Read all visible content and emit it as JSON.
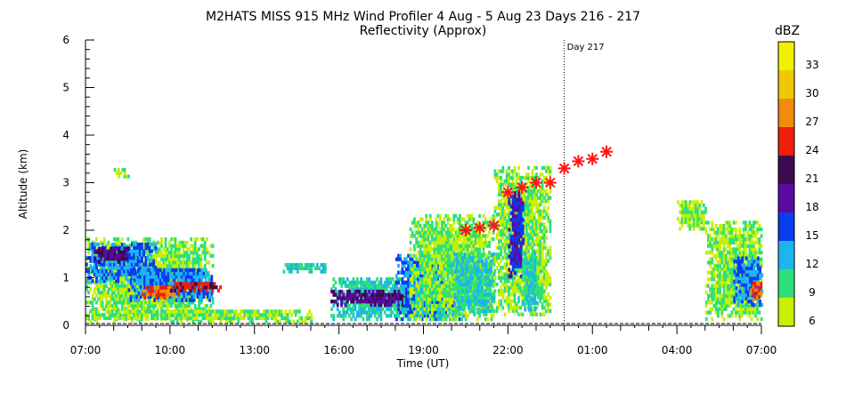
{
  "chart_data": {
    "type": "heatmap",
    "title": "M2HATS MISS 915 MHz Wind Profiler    4 Aug -  5 Aug 23 Days 216 - 217",
    "subtitle": "Reflectivity (Approx)",
    "xlabel": "Time (UT)",
    "ylabel": "Altitude (km)",
    "x_tick_labels": [
      "07:00",
      "10:00",
      "13:00",
      "16:00",
      "19:00",
      "22:00",
      "01:00",
      "04:00",
      "07:00"
    ],
    "x_range_hours": [
      7,
      31
    ],
    "ylim": [
      0,
      6
    ],
    "y_tick_labels": [
      "0",
      "1",
      "2",
      "3",
      "4",
      "5",
      "6"
    ],
    "day_marker": {
      "label": "Day 217",
      "x_hours": 24
    },
    "colorbar": {
      "unit": "dBZ",
      "tick_labels": [
        "6",
        "9",
        "12",
        "15",
        "18",
        "21",
        "24",
        "27",
        "30",
        "33"
      ],
      "levels": [
        6,
        9,
        12,
        15,
        18,
        21,
        24,
        27,
        30,
        33
      ],
      "colors": [
        "#c8f000",
        "#2ee07a",
        "#1eb4f0",
        "#0a3cf0",
        "#5a0aa0",
        "#3c0a50",
        "#f01e0a",
        "#f08c0a",
        "#f0c800",
        "#f0f000"
      ]
    },
    "markers": {
      "symbol": "asterisk",
      "color": "#ff1414",
      "points": [
        {
          "x": 20.5,
          "y": 2.0
        },
        {
          "x": 21.0,
          "y": 2.05
        },
        {
          "x": 21.5,
          "y": 2.1
        },
        {
          "x": 22.0,
          "y": 2.8
        },
        {
          "x": 22.5,
          "y": 2.9
        },
        {
          "x": 23.0,
          "y": 3.0
        },
        {
          "x": 23.5,
          "y": 3.0
        },
        {
          "x": 24.0,
          "y": 3.3
        },
        {
          "x": 24.5,
          "y": 3.45
        },
        {
          "x": 25.0,
          "y": 3.5
        },
        {
          "x": 25.5,
          "y": 3.65
        }
      ]
    },
    "echo_regions": [
      {
        "t0": 7.0,
        "t1": 11.5,
        "z0": 0.1,
        "z1": 1.8,
        "level": 9
      },
      {
        "t0": 7.0,
        "t1": 9.5,
        "z0": 0.9,
        "z1": 1.7,
        "level": 15
      },
      {
        "t0": 7.3,
        "t1": 8.5,
        "z0": 1.3,
        "z1": 1.6,
        "level": 21
      },
      {
        "t0": 8.5,
        "t1": 11.5,
        "z0": 0.5,
        "z1": 1.2,
        "level": 15
      },
      {
        "t0": 9.0,
        "t1": 10.3,
        "z0": 0.55,
        "z1": 0.8,
        "level": 27
      },
      {
        "t0": 10.0,
        "t1": 11.8,
        "z0": 0.7,
        "z1": 0.9,
        "level": 24
      },
      {
        "t0": 7.0,
        "t1": 15.0,
        "z0": 0.05,
        "z1": 0.3,
        "level": 9
      },
      {
        "t0": 8.0,
        "t1": 8.5,
        "z0": 3.1,
        "z1": 3.3,
        "level": 9
      },
      {
        "t0": 14.0,
        "t1": 15.5,
        "z0": 1.1,
        "z1": 1.3,
        "level": 12
      },
      {
        "t0": 15.7,
        "t1": 20.0,
        "z0": 0.1,
        "z1": 1.0,
        "level": 12
      },
      {
        "t0": 15.7,
        "t1": 19.5,
        "z0": 0.4,
        "z1": 0.7,
        "level": 21
      },
      {
        "t0": 18.0,
        "t1": 20.5,
        "z0": 0.1,
        "z1": 1.5,
        "level": 15
      },
      {
        "t0": 18.5,
        "t1": 21.5,
        "z0": 0.1,
        "z1": 2.3,
        "level": 9
      },
      {
        "t0": 20.0,
        "t1": 21.5,
        "z0": 0.2,
        "z1": 1.5,
        "level": 12
      },
      {
        "t0": 21.5,
        "t1": 23.5,
        "z0": 0.2,
        "z1": 3.3,
        "level": 9
      },
      {
        "t0": 22.0,
        "t1": 22.5,
        "z0": 1.0,
        "z1": 2.8,
        "level": 18
      },
      {
        "t0": 22.5,
        "t1": 23.0,
        "z0": 0.3,
        "z1": 1.5,
        "level": 12
      },
      {
        "t0": 28.0,
        "t1": 29.0,
        "z0": 2.0,
        "z1": 2.6,
        "level": 9
      },
      {
        "t0": 29.0,
        "t1": 31.0,
        "z0": 0.1,
        "z1": 2.2,
        "level": 9
      },
      {
        "t0": 30.0,
        "t1": 31.0,
        "z0": 0.4,
        "z1": 1.4,
        "level": 15
      },
      {
        "t0": 30.6,
        "t1": 31.0,
        "z0": 0.5,
        "z1": 0.9,
        "level": 27
      }
    ]
  }
}
